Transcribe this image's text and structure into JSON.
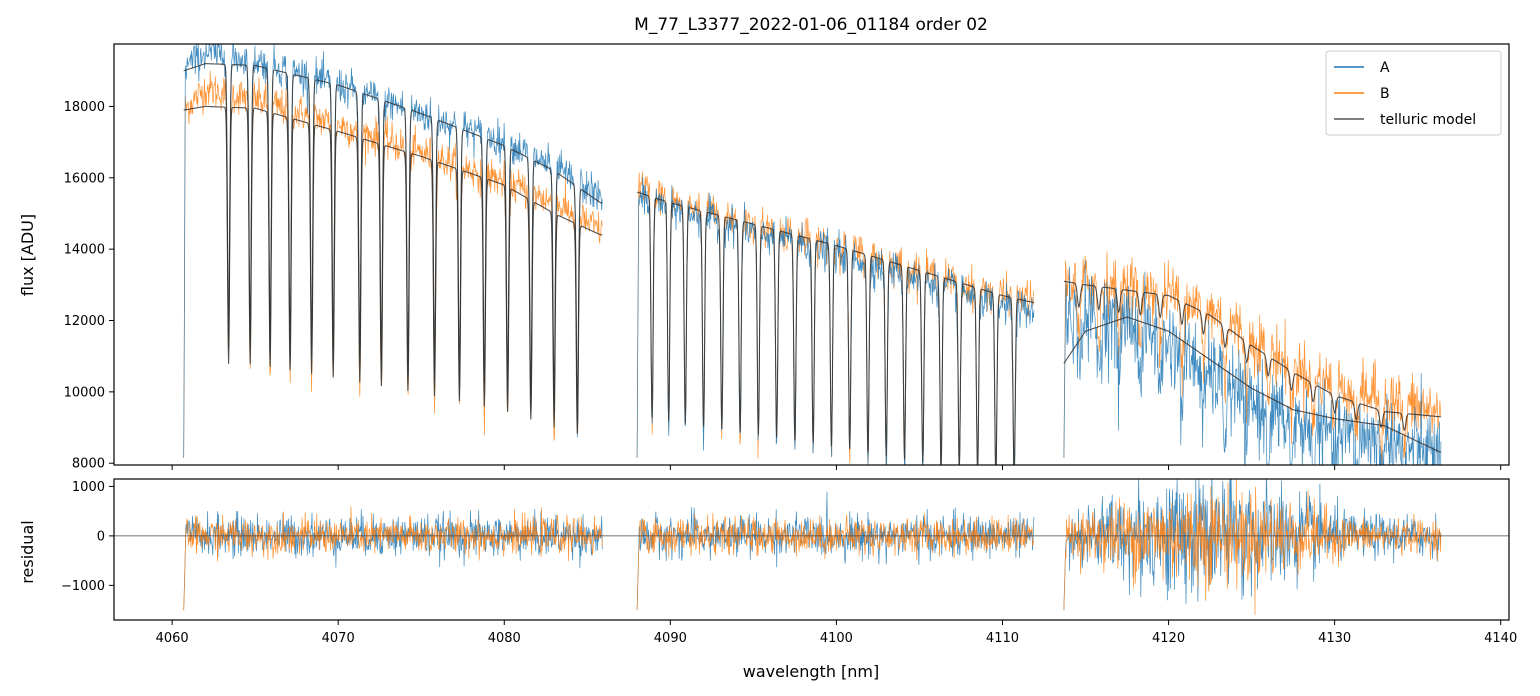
{
  "chart_data": [
    {
      "type": "line",
      "title": "M_77_L3377_2022-01-06_01184  order 02",
      "xlabel": "",
      "ylabel": "flux [ADU]",
      "xlim": [
        4056.5,
        4140.5
      ],
      "ylim": [
        7950,
        19750
      ],
      "y_ticks": [
        8000,
        10000,
        12000,
        14000,
        16000,
        18000
      ],
      "x_ticks": [
        4060,
        4070,
        4080,
        4090,
        4100,
        4110,
        4120,
        4130,
        4140
      ],
      "grid": false,
      "legend": {
        "placement": "top-right",
        "entries": [
          "A",
          "B",
          "telluric model"
        ]
      },
      "segments": [
        {
          "x": [
            4060.7,
            4085.9
          ],
          "series": [
            {
              "name": "A",
              "color": "#1f77b4",
              "x": [
                4060.7,
                4062,
                4065,
                4070,
                4075,
                4080,
                4083,
                4085.9
              ],
              "values": [
                19100,
                19500,
                19300,
                18600,
                17800,
                17000,
                16300,
                15400
              ]
            },
            {
              "name": "B",
              "color": "#ff7f0e",
              "x": [
                4060.7,
                4062,
                4065,
                4070,
                4075,
                4080,
                4083,
                4085.9
              ],
              "values": [
                17900,
                18500,
                18200,
                17500,
                16700,
                15900,
                15300,
                14500
              ]
            }
          ],
          "telluric_model": [
            {
              "x": [
                4060.7,
                4062,
                4065,
                4070,
                4075,
                4080,
                4083,
                4085.8
              ],
              "values": [
                19000,
                19200,
                19150,
                18600,
                17800,
                16900,
                16200,
                15300
              ]
            },
            {
              "x": [
                4060.7,
                4062,
                4065,
                4070,
                4075,
                4080,
                4083,
                4085.8
              ],
              "values": [
                17900,
                18000,
                17950,
                17300,
                16600,
                15800,
                15000,
                14400
              ]
            }
          ],
          "absorption_lines": [
            4063.4,
            4064.7,
            4065.9,
            4067.1,
            4068.4,
            4069.7,
            4071.3,
            4072.6,
            4074.2,
            4075.8,
            4077.3,
            4078.8,
            4080.2,
            4081.6,
            4083.0,
            4084.4
          ]
        },
        {
          "x": [
            4088.0,
            4111.9
          ],
          "series": [
            {
              "name": "A",
              "color": "#1f77b4",
              "x": [
                4088.0,
                4090,
                4095,
                4100,
                4105,
                4110,
                4111.9
              ],
              "values": [
                15500,
                15200,
                14500,
                13900,
                13200,
                12400,
                12200
              ]
            },
            {
              "name": "B",
              "color": "#ff7f0e",
              "x": [
                4088.0,
                4090,
                4095,
                4100,
                4105,
                4110,
                4111.9
              ],
              "values": [
                15800,
                15400,
                14700,
                14100,
                13400,
                12700,
                12600
              ]
            }
          ],
          "telluric_model": [
            {
              "x": [
                4088.0,
                4090,
                4095,
                4100,
                4105,
                4110,
                4111.9
              ],
              "values": [
                15600,
                15300,
                14700,
                14100,
                13400,
                12700,
                12500
              ]
            }
          ],
          "absorption_lines": [
            4088.9,
            4089.9,
            4090.9,
            4092.0,
            4093.1,
            4094.2,
            4095.3,
            4096.4,
            4097.5,
            4098.6,
            4099.7,
            4100.8,
            4101.9,
            4103.0,
            4104.1,
            4105.2,
            4106.3,
            4107.4,
            4108.5,
            4109.6,
            4110.7
          ]
        },
        {
          "x": [
            4113.7,
            4136.4
          ],
          "series": [
            {
              "name": "A",
              "color": "#1f77b4",
              "x": [
                4113.7,
                4115,
                4117.5,
                4120,
                4122.5,
                4125,
                4127.5,
                4130,
                4133,
                4136.4
              ],
              "values": [
                12300,
                12100,
                12000,
                11400,
                10500,
                9700,
                9100,
                8800,
                8700,
                8200
              ]
            },
            {
              "name": "B",
              "color": "#ff7f0e",
              "x": [
                4113.7,
                4115,
                4117.5,
                4120,
                4122.5,
                4125,
                4127.5,
                4130,
                4133,
                4136.4
              ],
              "values": [
                13000,
                13100,
                13000,
                12800,
                12300,
                11500,
                10700,
                10200,
                9800,
                9400
              ]
            }
          ],
          "telluric_model": [
            {
              "x": [
                4113.7,
                4115,
                4117.5,
                4120,
                4122.5,
                4125,
                4127.5,
                4130,
                4133,
                4136.4
              ],
              "values": [
                10800,
                11700,
                12100,
                11700,
                10900,
                10100,
                9500,
                9250,
                9050,
                8300
              ]
            },
            {
              "x": [
                4113.7,
                4115,
                4117.5,
                4120,
                4122.5,
                4125,
                4127.5,
                4130,
                4133,
                4136.4
              ],
              "values": [
                13100,
                13000,
                12850,
                12700,
                12150,
                11300,
                10550,
                9900,
                9450,
                9300
              ]
            }
          ],
          "absorption_lines": [
            4114.6,
            4115.8,
            4117.0,
            4118.3,
            4119.5,
            4120.8,
            4122.1,
            4123.4,
            4124.7,
            4126.0,
            4127.4,
            4128.7,
            4130.0,
            4131.3,
            4132.8,
            4134.2
          ]
        }
      ]
    },
    {
      "type": "line",
      "title": "",
      "xlabel": "wavelength [nm]",
      "ylabel": "residual",
      "xlim": [
        4056.5,
        4140.5
      ],
      "ylim": [
        -1700,
        1150
      ],
      "y_ticks": [
        -1000,
        0,
        1000
      ],
      "x_ticks": [
        4060,
        4070,
        4080,
        4090,
        4100,
        4110,
        4120,
        4130,
        4140
      ],
      "grid": false,
      "reference_line": 0,
      "segments": [
        {
          "x": [
            4060.7,
            4085.9
          ],
          "noise_A": 380,
          "noise_B": 330
        },
        {
          "x": [
            4088.0,
            4111.9
          ],
          "noise_A": 380,
          "noise_B": 330
        },
        {
          "x": [
            4113.7,
            4136.4
          ],
          "noise_A": 650,
          "noise_B": 520
        }
      ],
      "series": [
        {
          "name": "A",
          "color": "#1f77b4"
        },
        {
          "name": "B",
          "color": "#ff7f0e"
        }
      ]
    }
  ],
  "tick_labels": {
    "top_y": [
      "8000",
      "10000",
      "12000",
      "14000",
      "16000",
      "18000"
    ],
    "bottom_y": [
      "−1000",
      "0",
      "1000"
    ],
    "x": [
      "4060",
      "4070",
      "4080",
      "4090",
      "4100",
      "4110",
      "4120",
      "4130",
      "4140"
    ]
  },
  "legend": {
    "a_label": "A",
    "b_label": "B",
    "model_label": "telluric model",
    "colors": {
      "A": "#1f77b4",
      "B": "#ff7f0e",
      "model": "#555555"
    }
  }
}
